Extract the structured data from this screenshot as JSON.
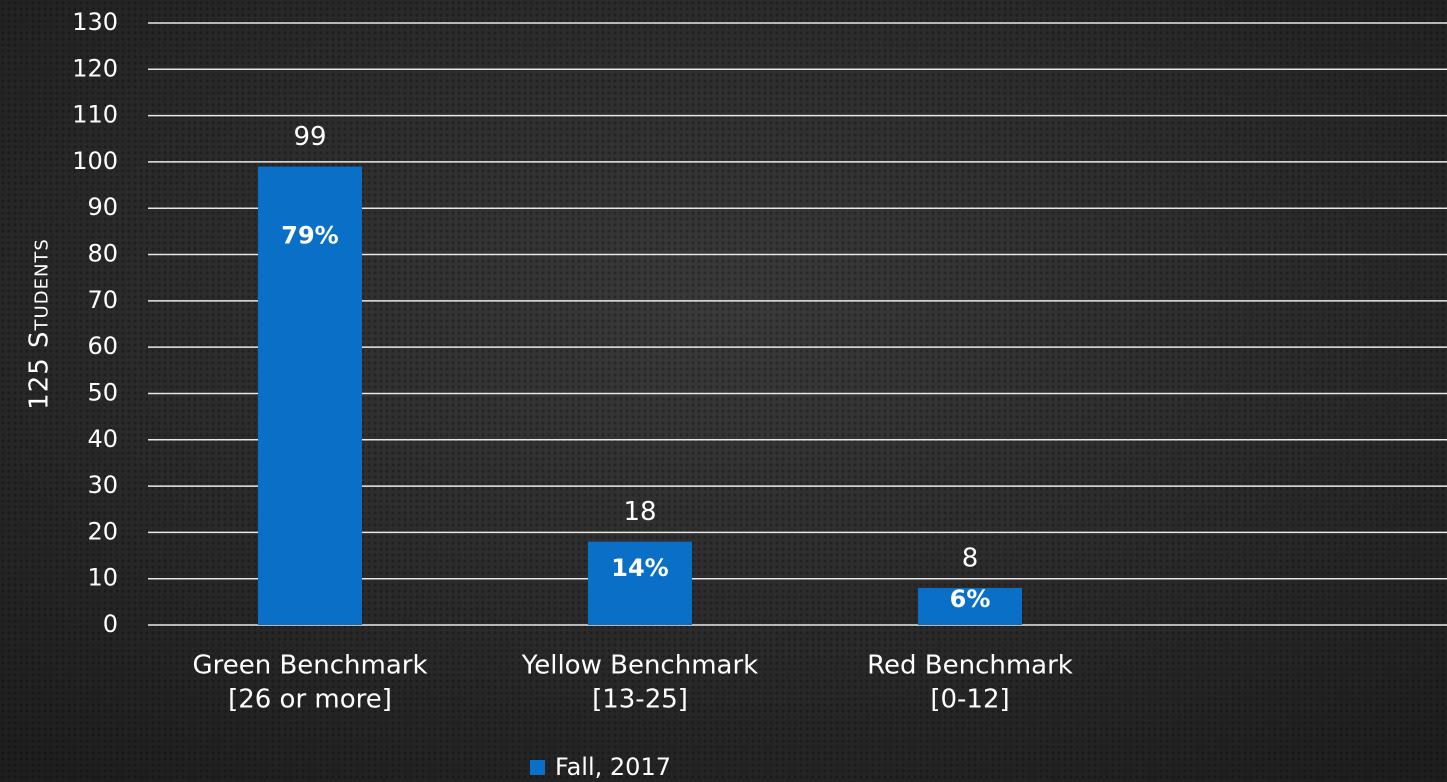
{
  "chart_data": {
    "type": "bar",
    "y_label": "125 Students",
    "categories": [
      [
        "Green Benchmark",
        "[26 or more]"
      ],
      [
        "Yellow Benchmark",
        "[13-25]"
      ],
      [
        "Red Benchmark",
        "[0-12]"
      ],
      null
    ],
    "series": [
      {
        "name": "Fall, 2017",
        "color": "#0a6fc6",
        "values": [
          99,
          18,
          8,
          null
        ],
        "percent_labels": [
          "79%",
          "14%",
          "6%",
          null
        ]
      }
    ],
    "ylim": [
      0,
      130
    ],
    "yticks": [
      0,
      10,
      20,
      30,
      40,
      50,
      60,
      70,
      80,
      90,
      100,
      110,
      120,
      130
    ],
    "grid": true,
    "legend": "bottom"
  }
}
